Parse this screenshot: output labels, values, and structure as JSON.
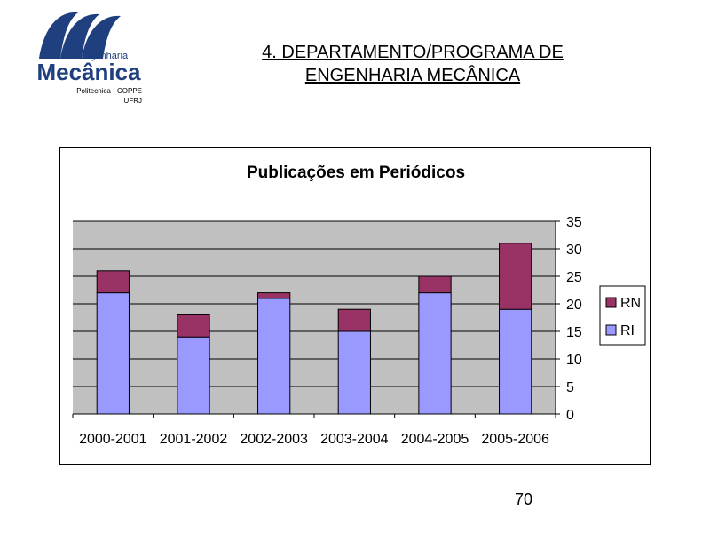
{
  "logo": {
    "line1": "Engenharia",
    "line2": "Mecânica",
    "line3": "Politecnica - COPPE",
    "line4": "UFRJ",
    "color": "#1f3f7f"
  },
  "slide": {
    "title_line1": "4. DEPARTAMENTO/PROGRAMA DE",
    "title_line2": "ENGENHARIA MECÂNICA",
    "page_number": "70"
  },
  "chart_data": {
    "type": "bar",
    "stacked": true,
    "title": "Publicações em Periódicos",
    "categories": [
      "2000-2001",
      "2001-2002",
      "2002-2003",
      "2003-2004",
      "2004-2005",
      "2005-2006"
    ],
    "series": [
      {
        "name": "RI",
        "values": [
          22,
          14,
          21,
          15,
          22,
          19
        ],
        "color": "#9999ff"
      },
      {
        "name": "RN",
        "values": [
          4,
          4,
          1,
          4,
          3,
          12
        ],
        "color": "#993366"
      }
    ],
    "ylim": [
      0,
      35
    ],
    "yticks": [
      "0",
      "5",
      "10",
      "15",
      "20",
      "25",
      "30",
      "35"
    ],
    "y_axis_side": "right",
    "plot_background": "#c0c0c0",
    "grid": true,
    "legend_position": "right",
    "legend_order": [
      "RN",
      "RI"
    ]
  }
}
